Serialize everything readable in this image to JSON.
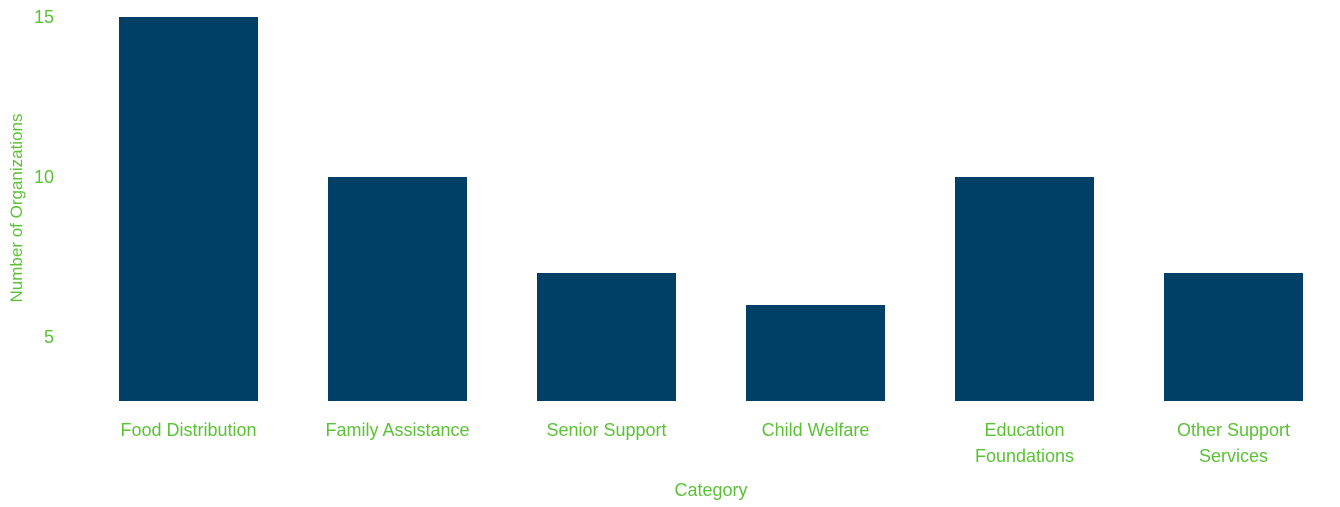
{
  "chart_data": {
    "type": "bar",
    "title": "",
    "xlabel": "Category",
    "ylabel": "Number of Organizations",
    "categories": [
      [
        "Food Distribution"
      ],
      [
        "Family Assistance"
      ],
      [
        "Senior Support"
      ],
      [
        "Child Welfare"
      ],
      [
        "Education",
        "Foundations"
      ],
      [
        "Other Support",
        "Services"
      ]
    ],
    "values": [
      15,
      10,
      7,
      6,
      10,
      7
    ],
    "ylim": [
      3,
      15
    ],
    "yticks": [
      5,
      10,
      15
    ],
    "grid": false,
    "legend": "none"
  },
  "colors": {
    "bar": "#003f66",
    "text": "#5bc236",
    "background": "#ffffff"
  }
}
